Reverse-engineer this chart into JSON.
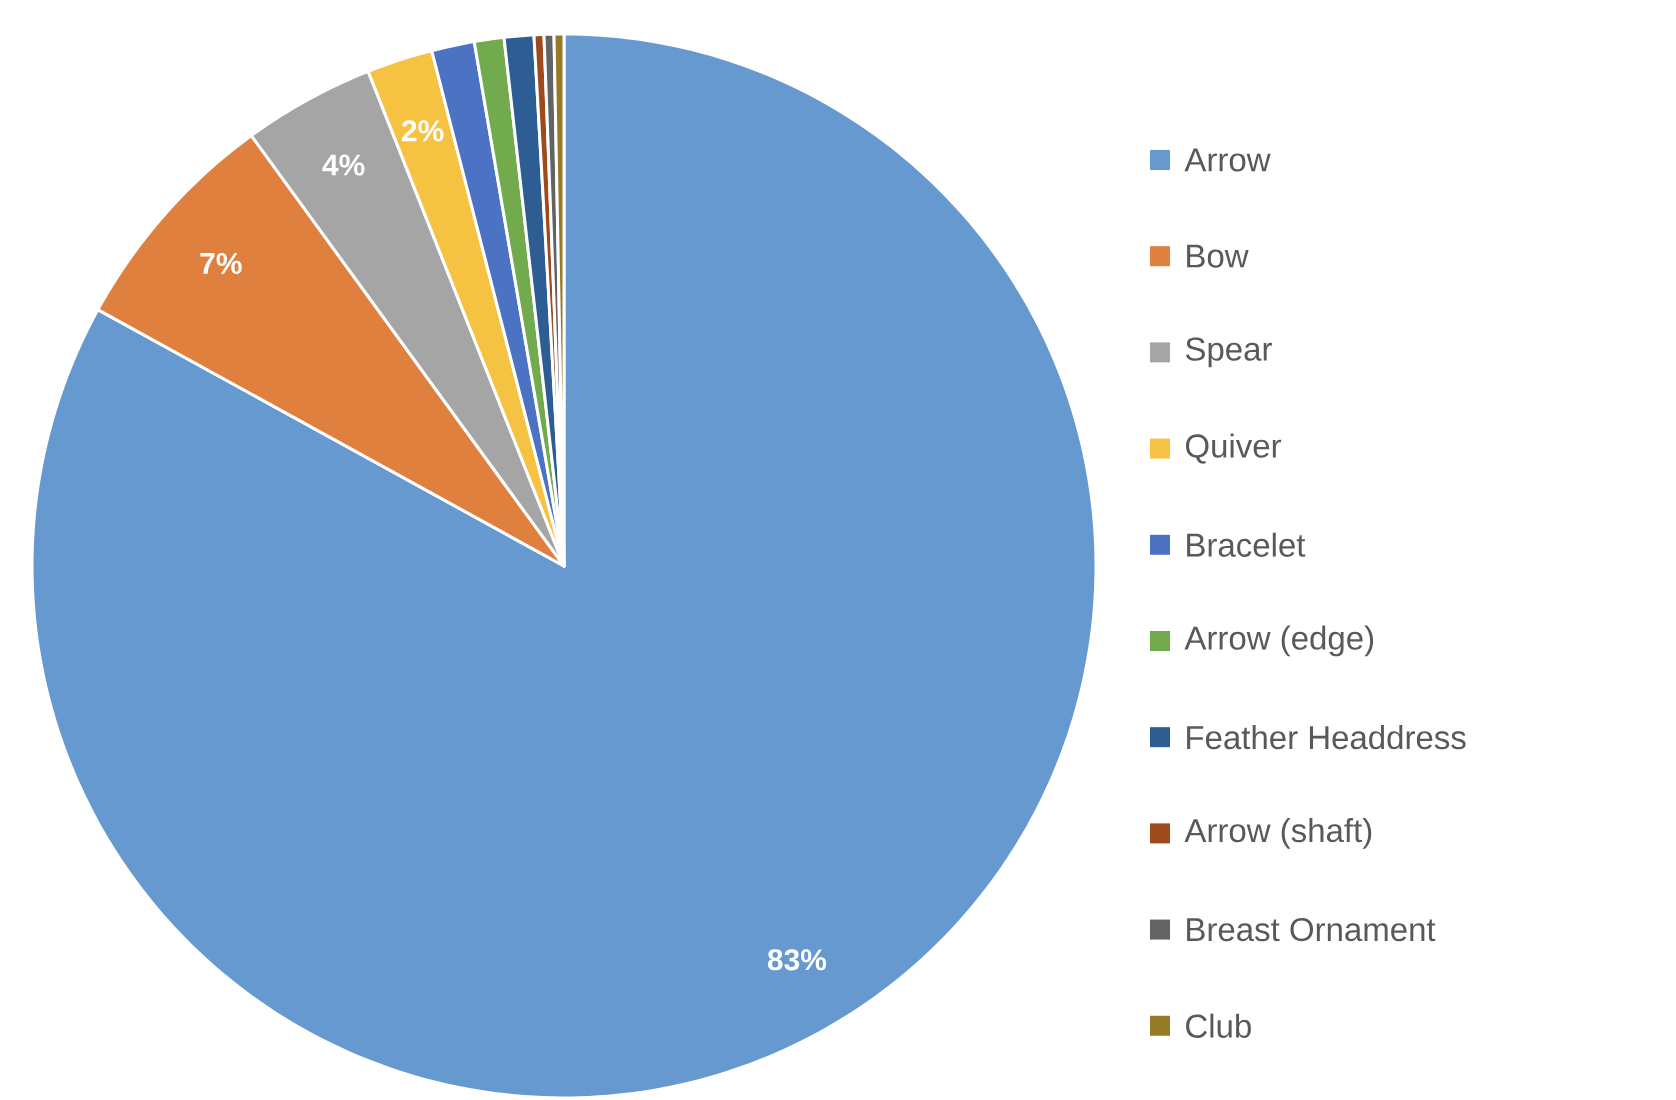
{
  "chart_data": {
    "type": "pie",
    "categories": [
      "Arrow",
      "Bow",
      "Spear",
      "Quiver",
      "Bracelet",
      "Arrow (edge)",
      "Feather Headdress",
      "Arrow (shaft)",
      "Breast Ornament",
      "Club"
    ],
    "values": [
      83,
      7,
      4,
      2,
      1.3,
      0.9,
      0.9,
      0.3,
      0.3,
      0.3
    ],
    "colors": [
      "#6699cf",
      "#e0803f",
      "#a5a5a5",
      "#f6c242",
      "#4c72c4",
      "#72ab4d",
      "#2d5d92",
      "#9e4a1d",
      "#636363",
      "#977a25"
    ],
    "value_labels": [
      "83%",
      "7%",
      "4%",
      "2%",
      null,
      null,
      null,
      null,
      null,
      null
    ],
    "legend": "right"
  }
}
